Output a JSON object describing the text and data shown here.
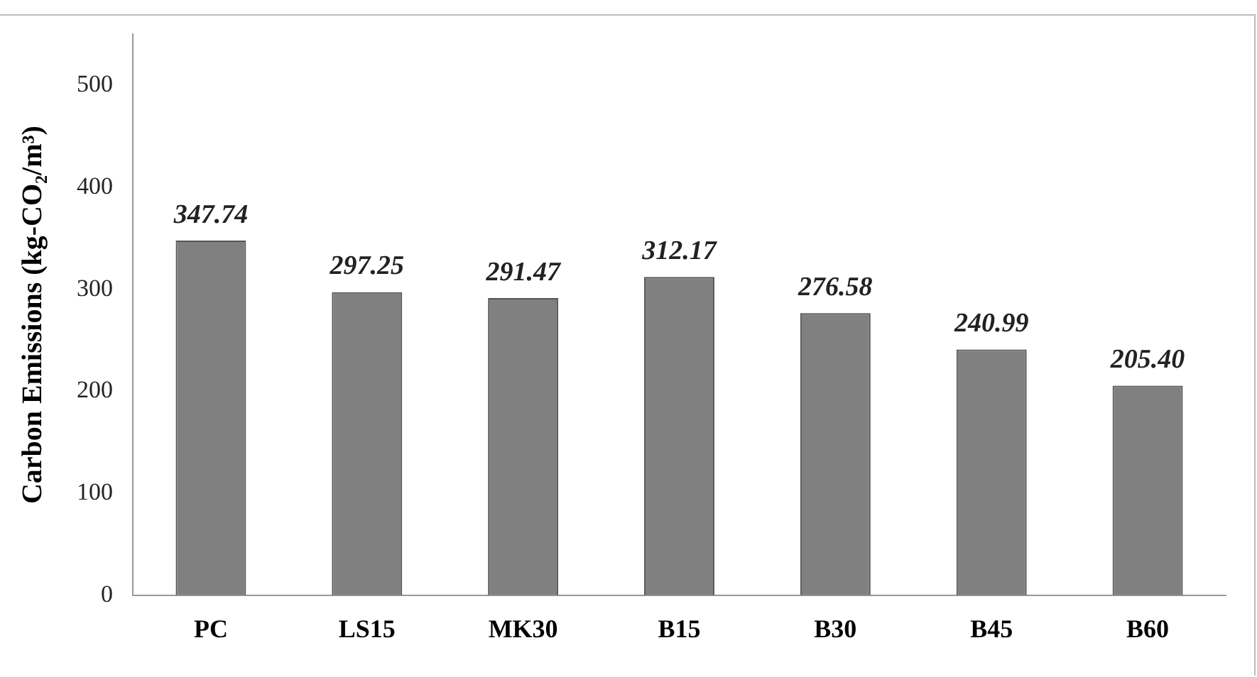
{
  "chart_data": {
    "type": "bar",
    "ylabel": "Carbon Emissions (kg-CO₂/m³)",
    "categories": [
      "PC",
      "LS15",
      "MK30",
      "B15",
      "B30",
      "B45",
      "B60"
    ],
    "values": [
      347.74,
      297.25,
      291.47,
      312.17,
      276.58,
      240.99,
      205.4
    ],
    "value_labels": [
      "347.74",
      "297.25",
      "291.47",
      "312.17",
      "276.58",
      "240.99",
      "205.40"
    ],
    "color": "#808080",
    "ylim": [
      0,
      550
    ],
    "yticks": [
      0,
      100,
      200,
      300,
      400,
      500
    ],
    "grid": false,
    "legend": false
  }
}
